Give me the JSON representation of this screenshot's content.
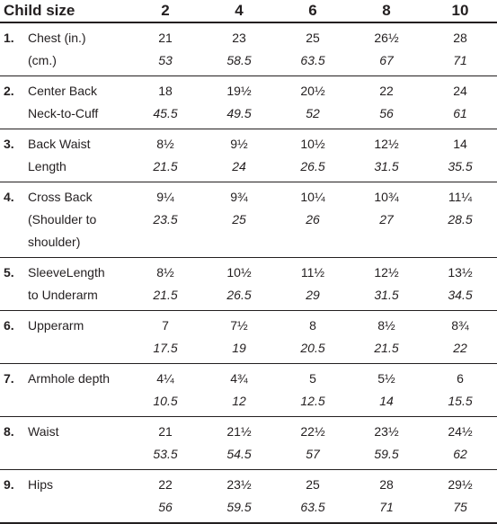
{
  "header": {
    "label": "Child size",
    "sizes": [
      "2",
      "4",
      "6",
      "8",
      "10"
    ]
  },
  "rows": [
    {
      "num": "1.",
      "label_lines": [
        "Chest (in.)",
        "(cm.)"
      ],
      "inches": [
        "21",
        "23",
        "25",
        "26½",
        "28"
      ],
      "cm": [
        "53",
        "58.5",
        "63.5",
        "67",
        "71"
      ]
    },
    {
      "num": "2.",
      "label_lines": [
        "Center Back",
        "Neck-to-Cuff"
      ],
      "inches": [
        "18",
        "19½",
        "20½",
        "22",
        "24"
      ],
      "cm": [
        "45.5",
        "49.5",
        "52",
        "56",
        "61"
      ]
    },
    {
      "num": "3.",
      "label_lines": [
        "Back Waist",
        "Length"
      ],
      "inches": [
        "8½",
        "9½",
        "10½",
        "12½",
        "14"
      ],
      "cm": [
        "21.5",
        "24",
        "26.5",
        "31.5",
        "35.5"
      ]
    },
    {
      "num": "4.",
      "label_lines": [
        "Cross Back",
        "(Shoulder to",
        "shoulder)"
      ],
      "inches": [
        "9¼",
        "9¾",
        "10¼",
        "10¾",
        "11¼"
      ],
      "cm": [
        "23.5",
        "25",
        "26",
        "27",
        "28.5"
      ]
    },
    {
      "num": "5.",
      "label_lines": [
        "SleeveLength",
        "to Underarm"
      ],
      "inches": [
        "8½",
        "10½",
        "11½",
        "12½",
        "13½"
      ],
      "cm": [
        "21.5",
        "26.5",
        "29",
        "31.5",
        "34.5"
      ]
    },
    {
      "num": "6.",
      "label_lines": [
        "Upperarm"
      ],
      "inches": [
        "7",
        "7½",
        "8",
        "8½",
        "8¾"
      ],
      "cm": [
        "17.5",
        "19",
        "20.5",
        "21.5",
        "22"
      ]
    },
    {
      "num": "7.",
      "label_lines": [
        "Armhole depth"
      ],
      "inches": [
        "4¼",
        "4¾",
        "5",
        "5½",
        "6"
      ],
      "cm": [
        "10.5",
        "12",
        "12.5",
        "14",
        "15.5"
      ]
    },
    {
      "num": "8.",
      "label_lines": [
        "Waist"
      ],
      "inches": [
        "21",
        "21½",
        "22½",
        "23½",
        "24½"
      ],
      "cm": [
        "53.5",
        "54.5",
        "57",
        "59.5",
        "62"
      ]
    },
    {
      "num": "9.",
      "label_lines": [
        "Hips"
      ],
      "inches": [
        "22",
        "23½",
        "25",
        "28",
        "29½"
      ],
      "cm": [
        "56",
        "59.5",
        "63.5",
        "71",
        "75"
      ]
    }
  ]
}
